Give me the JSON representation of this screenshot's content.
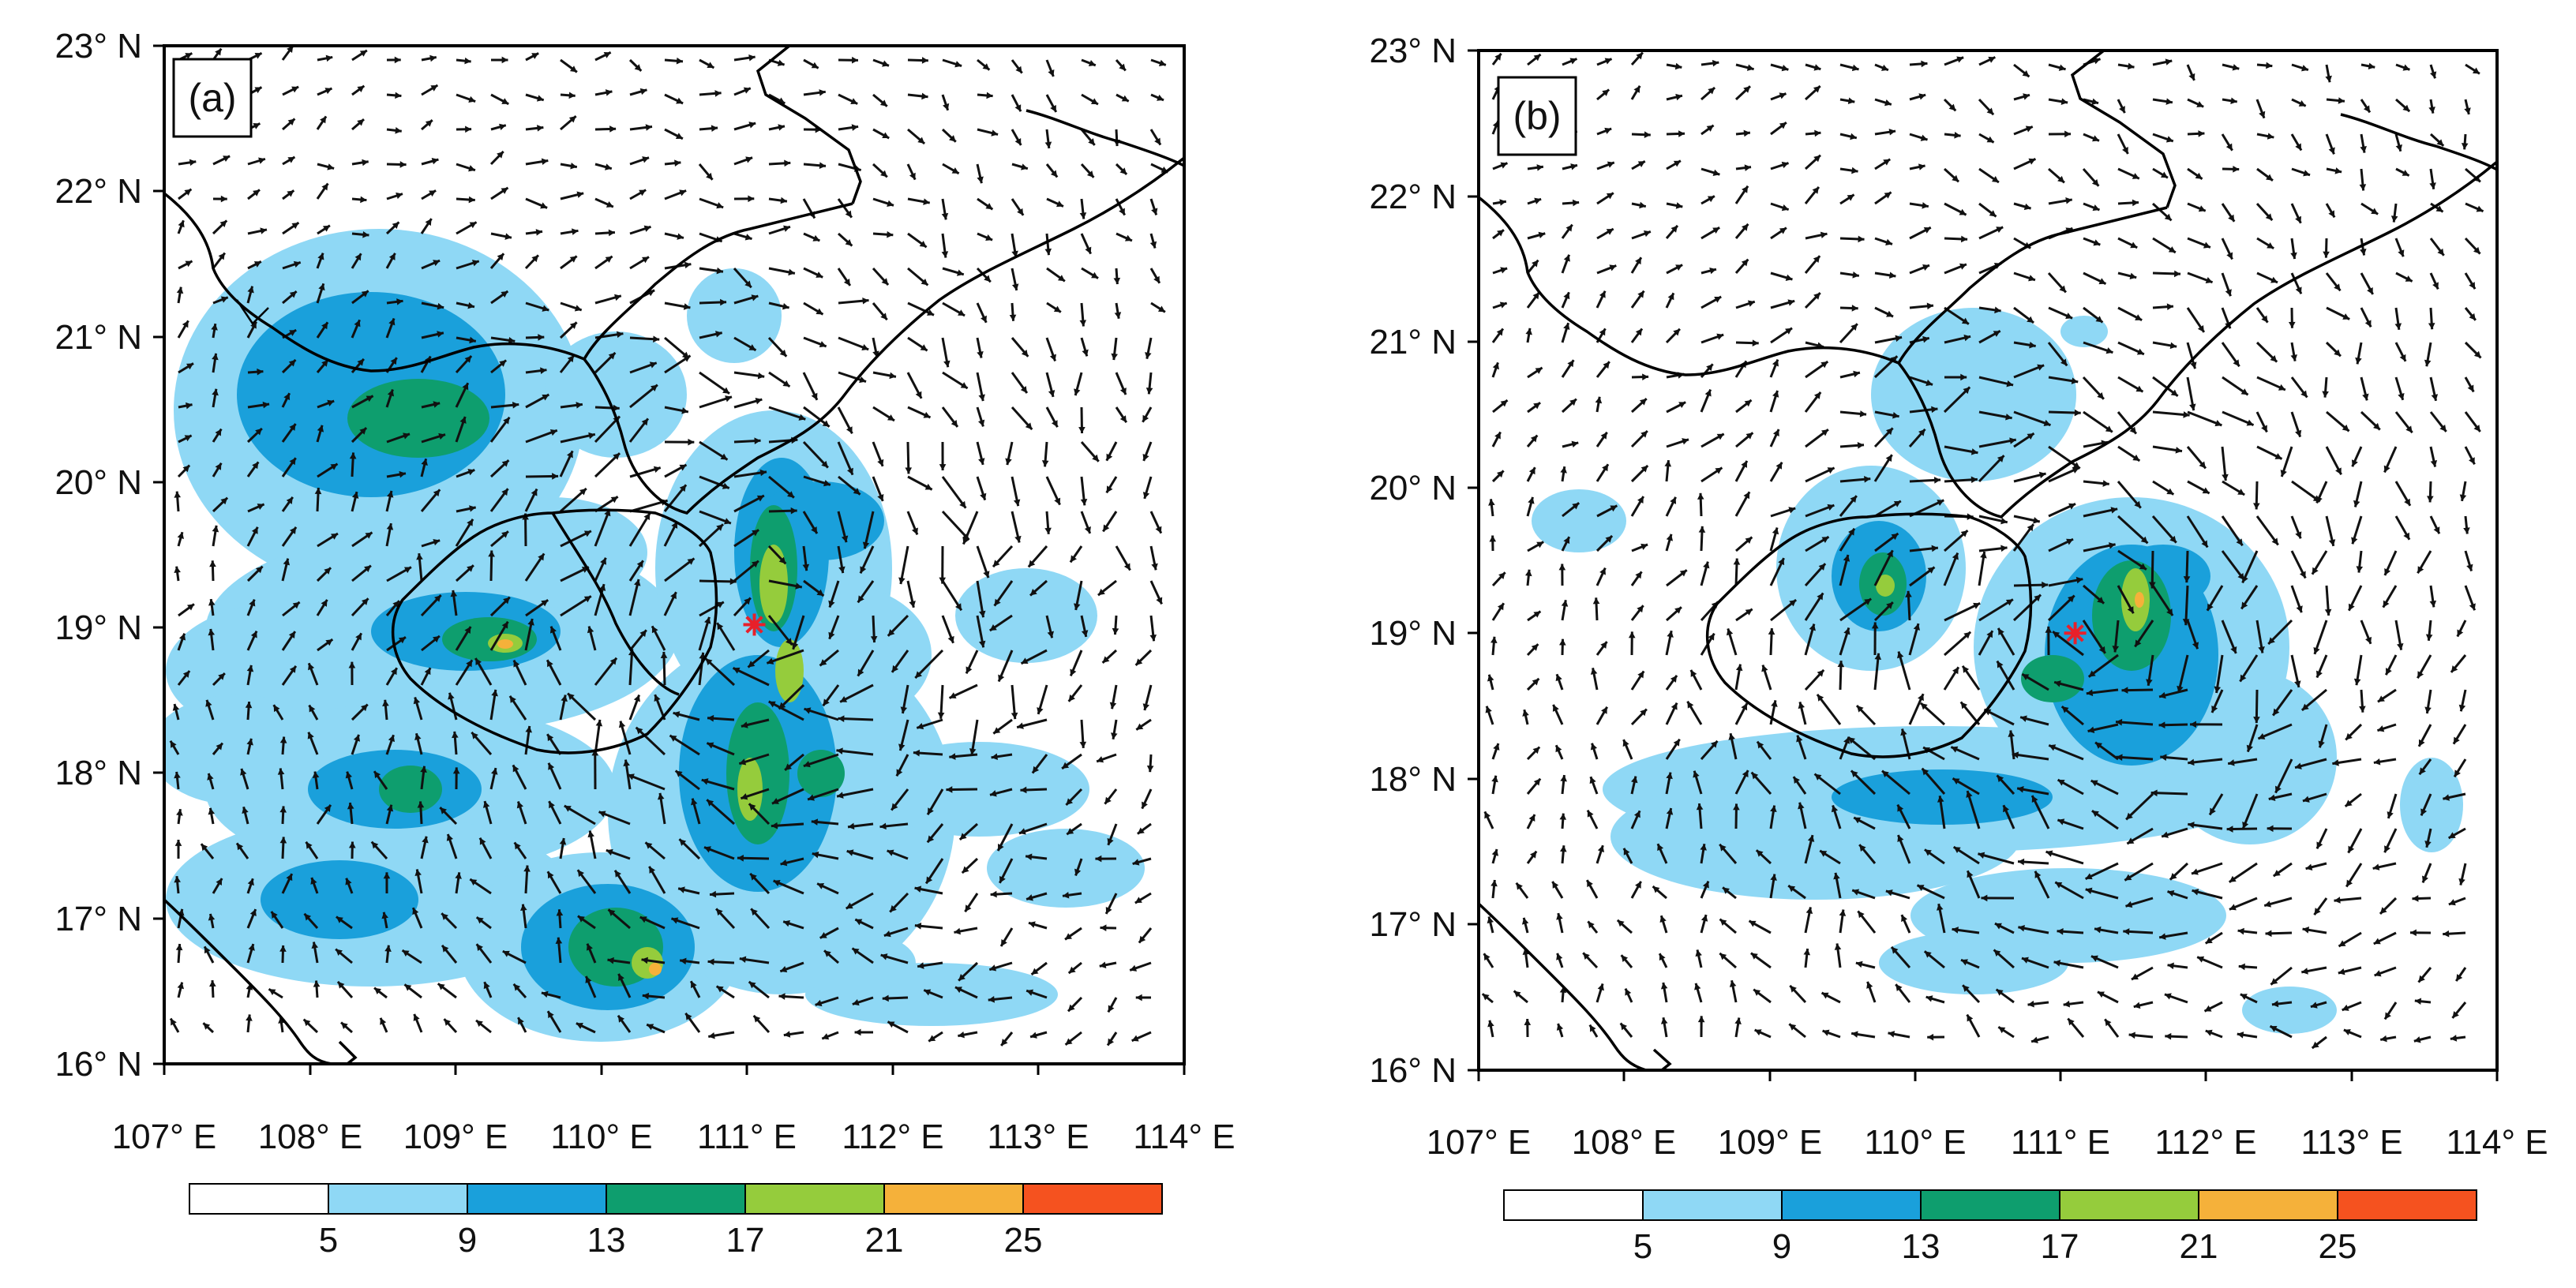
{
  "panels": [
    {
      "id": "a",
      "label": "(a)",
      "storm_center": {
        "lon": 111.05,
        "lat": 19.02
      },
      "lat_ticks": [
        "23° N",
        "22° N",
        "21° N",
        "20° N",
        "19° N",
        "18° N",
        "17° N",
        "16° N"
      ],
      "lon_ticks": [
        "107° E",
        "108° E",
        "109° E",
        "110° E",
        "111° E",
        "112° E",
        "113° E",
        "114° E"
      ]
    },
    {
      "id": "b",
      "label": "(b)",
      "storm_center": {
        "lon": 111.1,
        "lat": 19.0
      },
      "lat_ticks": [
        "23° N",
        "22° N",
        "21° N",
        "20° N",
        "19° N",
        "18° N",
        "17° N",
        "16° N"
      ],
      "lon_ticks": [
        "107° E",
        "108° E",
        "109° E",
        "110° E",
        "111° E",
        "112° E",
        "113° E",
        "114° E"
      ]
    }
  ],
  "colorbar": {
    "labels": [
      "5",
      "9",
      "13",
      "17",
      "21",
      "25"
    ],
    "colors": [
      "#ffffff",
      "#8fd8f5",
      "#1aa0db",
      "#0e9e6e",
      "#95cc3c",
      "#f5b13a",
      "#f5521f"
    ]
  },
  "colors": {
    "coast": "#000000",
    "vector": "#111111",
    "storm_marker": "#e8202a"
  }
}
